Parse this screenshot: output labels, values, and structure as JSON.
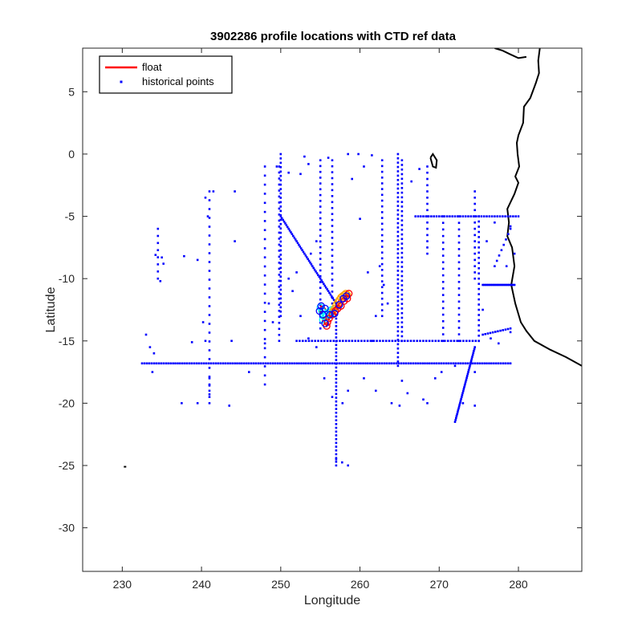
{
  "chart_data": {
    "type": "scatter",
    "title": "3902286 profile locations with CTD ref data",
    "xlabel": "Longitude",
    "ylabel": "Latitude",
    "xlim": [
      225,
      288
    ],
    "ylim": [
      -33.5,
      8.5
    ],
    "xticks": [
      230,
      240,
      250,
      260,
      270,
      280
    ],
    "yticks": [
      5,
      0,
      -5,
      -10,
      -15,
      -20,
      -25,
      -30
    ],
    "xtick_labels": [
      "230",
      "240",
      "250",
      "260",
      "270",
      "280"
    ],
    "ytick_labels": [
      "5",
      "0",
      "-5",
      "-10",
      "-15",
      "-20",
      "-25",
      "-30"
    ],
    "grid": false,
    "legend": {
      "location": "top-left",
      "entries": [
        {
          "label": "float",
          "color": "#ff0000",
          "marker": "line"
        },
        {
          "label": "historical points",
          "color": "#0000ff",
          "marker": "dot"
        }
      ]
    },
    "series": [
      {
        "name": "float",
        "color": "#ff0000",
        "profile_colors": [
          "#00ffff",
          "#ffa500",
          "#ff0000",
          "#0000ff"
        ],
        "points": [
          [
            255,
            -12.3
          ],
          [
            255.2,
            -12.6
          ],
          [
            255.4,
            -13
          ],
          [
            255.3,
            -13.3
          ],
          [
            255.6,
            -13.1
          ],
          [
            255.8,
            -12.9
          ],
          [
            256,
            -12.7
          ],
          [
            256.2,
            -12.6
          ],
          [
            256.4,
            -12.5
          ],
          [
            256.3,
            -12.9
          ],
          [
            256.6,
            -12.6
          ],
          [
            256.8,
            -12.4
          ],
          [
            257,
            -12.1
          ],
          [
            257.2,
            -11.9
          ],
          [
            257.4,
            -11.7
          ],
          [
            257.6,
            -11.5
          ],
          [
            257.8,
            -11.4
          ],
          [
            258,
            -11.3
          ],
          [
            258.2,
            -11.2
          ],
          [
            258.4,
            -11.3
          ],
          [
            258.6,
            -11.2
          ],
          [
            258.4,
            -11.6
          ],
          [
            258,
            -11.8
          ],
          [
            257.6,
            -12.2
          ],
          [
            257.2,
            -12.4
          ],
          [
            256.9,
            -12.6
          ],
          [
            256.5,
            -12.9
          ],
          [
            256.1,
            -13.2
          ],
          [
            255.9,
            -13.5
          ],
          [
            255.8,
            -13.8
          ],
          [
            255.6,
            -13.6
          ],
          [
            255.3,
            -12.9
          ],
          [
            254.9,
            -12.6
          ],
          [
            255.1,
            -12.2
          ],
          [
            255.6,
            -12.4
          ],
          [
            256.2,
            -12.9
          ],
          [
            256.8,
            -12.8
          ],
          [
            257.4,
            -12.1
          ],
          [
            257.9,
            -11.6
          ],
          [
            258.3,
            -11.4
          ]
        ]
      },
      {
        "name": "historical points",
        "color": "#0000ff",
        "transects": [
          {
            "from": [
              232.5,
              -16.8
            ],
            "to": [
              279,
              -16.8
            ],
            "n": 156
          },
          {
            "from": [
              250,
              -5
            ],
            "to": [
              257,
              -12
            ],
            "n": 50
          },
          {
            "from": [
              257,
              -12
            ],
            "to": [
              257,
              -25
            ],
            "n": 44
          },
          {
            "from": [
              250,
              0
            ],
            "to": [
              250,
              -13
            ],
            "n": 38
          },
          {
            "from": [
              249.8,
              -1
            ],
            "to": [
              249.8,
              -15
            ],
            "n": 30
          },
          {
            "from": [
              255,
              -0.5
            ],
            "to": [
              255,
              -14
            ],
            "n": 30
          },
          {
            "from": [
              256.5,
              -0.5
            ],
            "to": [
              256.5,
              -12
            ],
            "n": 25
          },
          {
            "from": [
              262.8,
              -0.5
            ],
            "to": [
              262.8,
              -13
            ],
            "n": 28
          },
          {
            "from": [
              264.8,
              0
            ],
            "to": [
              264.8,
              -17
            ],
            "n": 50
          },
          {
            "from": [
              265.3,
              -0.5
            ],
            "to": [
              265.3,
              -15
            ],
            "n": 40
          },
          {
            "from": [
              268.5,
              -1
            ],
            "to": [
              268.5,
              -8
            ],
            "n": 15
          },
          {
            "from": [
              270.5,
              -5
            ],
            "to": [
              270.5,
              -15
            ],
            "n": 20
          },
          {
            "from": [
              272.5,
              -5
            ],
            "to": [
              272.5,
              -15
            ],
            "n": 20
          },
          {
            "from": [
              274.5,
              -3
            ],
            "to": [
              274.5,
              -10
            ],
            "n": 15
          },
          {
            "from": [
              275,
              -5
            ],
            "to": [
              275,
              -15
            ],
            "n": 25
          },
          {
            "from": [
              241,
              -3
            ],
            "to": [
              241,
              -20
            ],
            "n": 25
          },
          {
            "from": [
              234.5,
              -6
            ],
            "to": [
              234.5,
              -10
            ],
            "n": 8
          },
          {
            "from": [
              248,
              -1
            ],
            "to": [
              248,
              -18.5
            ],
            "n": 25
          },
          {
            "from": [
              267,
              -5
            ],
            "to": [
              280,
              -5
            ],
            "n": 40
          },
          {
            "from": [
              275.5,
              -10.5
            ],
            "to": [
              279.5,
              -10.5
            ],
            "n": 25
          },
          {
            "from": [
              252,
              -15
            ],
            "to": [
              275,
              -15
            ],
            "n": 60
          },
          {
            "from": [
              274.5,
              -15.5
            ],
            "to": [
              272,
              -21.5
            ],
            "n": 40
          },
          {
            "from": [
              275.5,
              -14.5
            ],
            "to": [
              279,
              -14
            ],
            "n": 12
          },
          {
            "from": [
              277,
              -9
            ],
            "to": [
              279,
              -6
            ],
            "n": 8
          },
          {
            "from": [
              241,
              -18
            ],
            "to": [
              241,
              -19.5
            ],
            "n": 4
          },
          {
            "from": [
              257,
              -24.5
            ],
            "to": [
              258.5,
              -25
            ],
            "n": 3
          }
        ],
        "points": [
          [
            233,
            -14.5
          ],
          [
            233.5,
            -15.5
          ],
          [
            234,
            -16
          ],
          [
            233.8,
            -17.5
          ],
          [
            234.2,
            -8.1
          ],
          [
            235,
            -8.3
          ],
          [
            235.2,
            -8.8
          ],
          [
            234.8,
            -10.2
          ],
          [
            237.8,
            -8.2
          ],
          [
            239.5,
            -8.5
          ],
          [
            240.2,
            -13.5
          ],
          [
            240.5,
            -15
          ],
          [
            238.8,
            -15.1
          ],
          [
            243.8,
            -15
          ],
          [
            244.2,
            -3
          ],
          [
            244.2,
            -7
          ],
          [
            241.5,
            -3
          ],
          [
            240.5,
            -3.5
          ],
          [
            240.8,
            -5
          ],
          [
            237.5,
            -20
          ],
          [
            239.5,
            -20
          ],
          [
            243.5,
            -20.2
          ],
          [
            246,
            -17.5
          ],
          [
            248,
            -15.2
          ],
          [
            249.5,
            -1
          ],
          [
            251,
            -1.5
          ],
          [
            252.5,
            -1.6
          ],
          [
            253,
            -0.2
          ],
          [
            253.5,
            -0.8
          ],
          [
            256,
            -0.3
          ],
          [
            258.5,
            0
          ],
          [
            259.8,
            0
          ],
          [
            261.5,
            -0.1
          ],
          [
            260.5,
            -1
          ],
          [
            259,
            -2
          ],
          [
            260,
            -5.2
          ],
          [
            262.5,
            -9
          ],
          [
            263,
            -10.5
          ],
          [
            263.5,
            -12
          ],
          [
            261.5,
            -15
          ],
          [
            260.5,
            -18
          ],
          [
            262,
            -19
          ],
          [
            264,
            -20
          ],
          [
            268.5,
            -20
          ],
          [
            269.5,
            -18
          ],
          [
            270.3,
            -17.5
          ],
          [
            272,
            -17
          ],
          [
            265,
            -20.2
          ],
          [
            273,
            -20
          ],
          [
            274.5,
            -20.2
          ],
          [
            275.5,
            -12.5
          ],
          [
            276.5,
            -14.8
          ],
          [
            277.5,
            -15.2
          ],
          [
            279,
            -14.3
          ],
          [
            278.5,
            -9
          ],
          [
            279.5,
            -8
          ],
          [
            276,
            -7
          ],
          [
            277,
            -5.5
          ],
          [
            279,
            -5.8
          ],
          [
            267.5,
            -1.2
          ],
          [
            266.5,
            -2.2
          ],
          [
            261,
            -9.5
          ],
          [
            262,
            -13
          ],
          [
            251.5,
            -11
          ],
          [
            252.5,
            -13
          ],
          [
            253.5,
            -14.8
          ],
          [
            254.5,
            -15.5
          ],
          [
            255.5,
            -18
          ],
          [
            256.5,
            -19.5
          ],
          [
            257.8,
            -20
          ],
          [
            258.5,
            -19
          ],
          [
            265.3,
            -18.2
          ],
          [
            266,
            -19.2
          ],
          [
            268,
            -19.7
          ],
          [
            274.5,
            -17.5
          ],
          [
            248.5,
            -12
          ],
          [
            249,
            -13.5
          ],
          [
            251,
            -10
          ],
          [
            252,
            -9.5
          ],
          [
            253.8,
            -8
          ],
          [
            254.5,
            -7
          ]
        ]
      }
    ],
    "coastline": {
      "color": "#000000",
      "mainland": [
        [
          288,
          -17
        ],
        [
          286,
          -16.3
        ],
        [
          284,
          -15.7
        ],
        [
          282,
          -15
        ],
        [
          281,
          -14.2
        ],
        [
          280.3,
          -13.5
        ],
        [
          279.6,
          -12
        ],
        [
          279.1,
          -10.5
        ],
        [
          279.5,
          -9
        ],
        [
          279.2,
          -7.5
        ],
        [
          278.6,
          -6.6
        ],
        [
          278.8,
          -5.5
        ],
        [
          278.6,
          -4.4
        ],
        [
          279.5,
          -3.2
        ],
        [
          280,
          -2.3
        ],
        [
          279.6,
          -1.8
        ],
        [
          280.1,
          -1
        ],
        [
          279.9,
          0
        ],
        [
          279.8,
          0.9
        ],
        [
          280,
          1.5
        ],
        [
          280.6,
          2.5
        ],
        [
          280.7,
          3.8
        ],
        [
          281.5,
          4.5
        ],
        [
          282.2,
          5.7
        ],
        [
          282.6,
          6.5
        ],
        [
          282.5,
          7.5
        ],
        [
          282.7,
          8.5
        ]
      ],
      "pieces": [
        [
          [
            277,
            8.5
          ],
          [
            278,
            8.3
          ],
          [
            279,
            8.0
          ],
          [
            280,
            7.7
          ],
          [
            281,
            7.8
          ]
        ],
        [
          [
            268.9,
            -0.3
          ],
          [
            269.2,
            -1.0
          ],
          [
            269.6,
            -1.1
          ],
          [
            269.7,
            -0.5
          ],
          [
            269.2,
            0
          ],
          [
            268.9,
            -0.3
          ]
        ],
        [
          [
            230.2,
            -25.1
          ],
          [
            230.5,
            -25.1
          ]
        ]
      ]
    }
  }
}
